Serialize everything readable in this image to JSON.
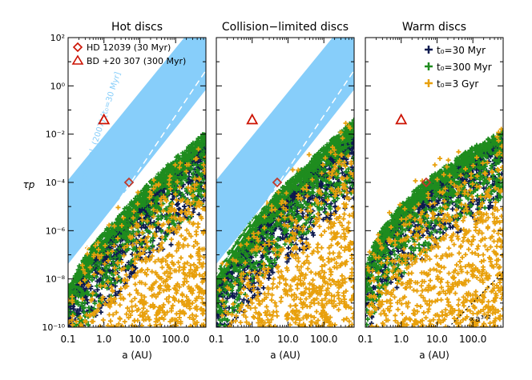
{
  "chart_data": [
    {
      "type": "scatter",
      "title": "Hot discs",
      "xlabel": "a (AU)",
      "ylabel": "τp",
      "xscale": "log",
      "yscale": "log",
      "xlim": [
        0.1,
        700
      ],
      "ylim": [
        1e-10,
        100
      ],
      "x_ticks": [
        "0.1",
        "1.0",
        "10.0",
        "100.0"
      ],
      "y_ticks": [
        "10⁻¹⁰",
        "10⁻⁸",
        "10⁻⁶",
        "10⁻⁴",
        "10⁻²",
        "10⁰",
        "10²"
      ],
      "band": {
        "label": "Wyatt et al. (2007) [t₀=30 Myr]",
        "color": "#87cefa"
      },
      "markers": [
        {
          "name": "HD 12039 (30 Myr)",
          "shape": "diamond",
          "x": 5,
          "y": 0.0001,
          "color": "#c0392b"
        },
        {
          "name": "BD +20 307 (300 Myr)",
          "shape": "triangle",
          "x": 1,
          "y": 0.04,
          "color": "#cc1100"
        }
      ],
      "legend_position": "top-left"
    },
    {
      "type": "scatter",
      "title": "Collision−limited discs",
      "xlabel": "a (AU)",
      "xscale": "log",
      "yscale": "log",
      "xlim": [
        0.1,
        700
      ],
      "ylim": [
        1e-10,
        100
      ],
      "x_ticks": [
        "0.1",
        "1.0",
        "10.0",
        "100.0"
      ],
      "band": {
        "color": "#87cefa"
      },
      "markers": [
        {
          "shape": "diamond",
          "x": 5,
          "y": 0.0001,
          "color": "#c0392b"
        },
        {
          "shape": "triangle",
          "x": 1,
          "y": 0.04,
          "color": "#cc1100"
        }
      ]
    },
    {
      "type": "scatter",
      "title": "Warm discs",
      "xlabel": "a (AU)",
      "xscale": "log",
      "yscale": "log",
      "xlim": [
        0.1,
        700
      ],
      "ylim": [
        1e-10,
        100
      ],
      "x_ticks": [
        "0.1",
        "1.0",
        "10.0",
        "100.0"
      ],
      "series": [
        {
          "name": "t₀=30 Myr",
          "color": "#0d1a4f"
        },
        {
          "name": "t₀=300 Myr",
          "color": "#1f8c1f"
        },
        {
          "name": "t₀=3 Gyr",
          "color": "#e8a00c"
        }
      ],
      "annotation": "∝a³ᐟ²",
      "markers": [
        {
          "shape": "diamond",
          "x": 5,
          "y": 0.0001,
          "color": "#c0392b"
        },
        {
          "shape": "triangle",
          "x": 1,
          "y": 0.04,
          "color": "#cc1100"
        }
      ],
      "legend_position": "top-right"
    }
  ],
  "colors": {
    "navy": "#0d1a4f",
    "green": "#1f8c1f",
    "orange": "#e8a00c",
    "band": "#87cefa",
    "marker": "#cc1100"
  }
}
